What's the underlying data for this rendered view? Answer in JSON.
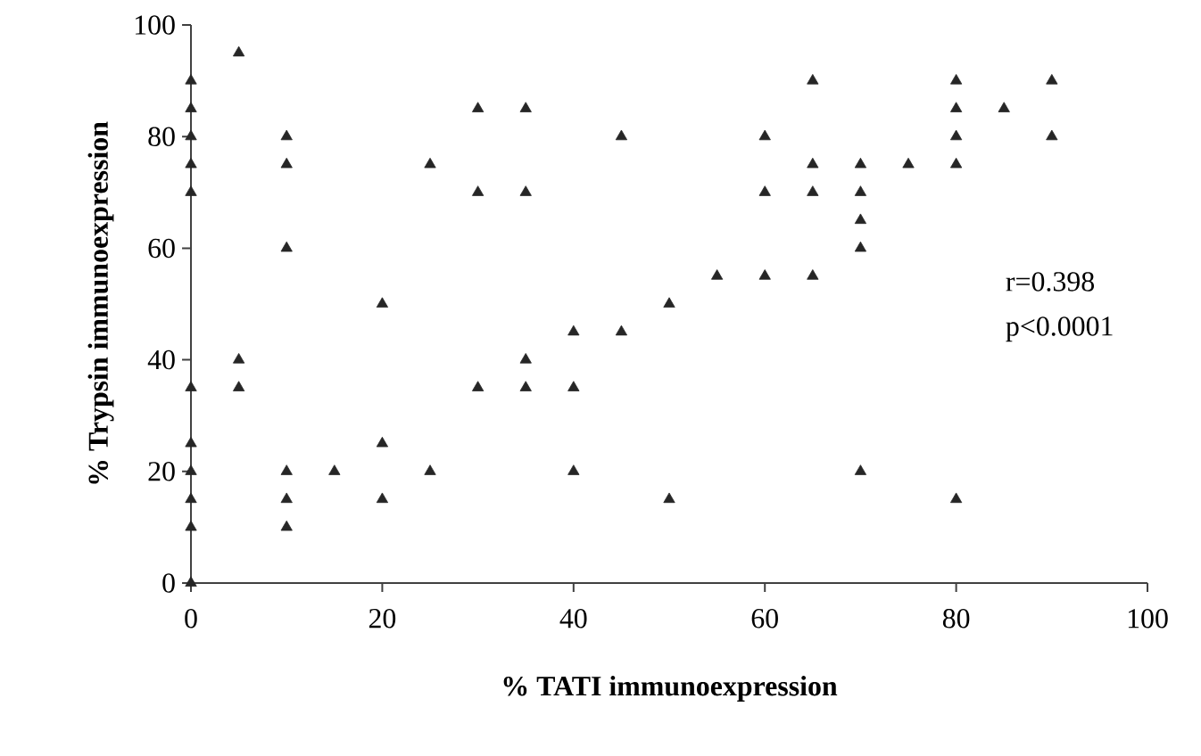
{
  "chart_data": {
    "type": "scatter",
    "xlabel": "% TATI immunoexpression",
    "ylabel": "% Trypsin immunoexpression",
    "annotations": [
      "r=0.398",
      "p<0.0001"
    ],
    "x": [
      0,
      0,
      0,
      0,
      0,
      0,
      0,
      0,
      0,
      0,
      0,
      5,
      5,
      5,
      10,
      10,
      10,
      10,
      10,
      10,
      15,
      20,
      20,
      20,
      25,
      25,
      30,
      30,
      30,
      35,
      35,
      35,
      35,
      40,
      40,
      40,
      45,
      45,
      50,
      50,
      55,
      60,
      60,
      60,
      65,
      65,
      65,
      65,
      70,
      70,
      70,
      70,
      70,
      75,
      80,
      80,
      80,
      80,
      80,
      85,
      90,
      90
    ],
    "values": [
      90,
      85,
      80,
      75,
      70,
      35,
      25,
      20,
      15,
      10,
      0,
      95,
      40,
      35,
      80,
      75,
      60,
      20,
      15,
      10,
      20,
      50,
      25,
      15,
      75,
      20,
      85,
      70,
      35,
      85,
      70,
      40,
      35,
      45,
      35,
      20,
      80,
      45,
      50,
      15,
      55,
      80,
      70,
      55,
      90,
      75,
      70,
      55,
      75,
      70,
      65,
      60,
      20,
      75,
      90,
      85,
      80,
      75,
      15,
      85,
      90,
      80
    ],
    "color": "#262626",
    "marker": "triangle",
    "xlim": [
      0,
      100
    ],
    "ylim": [
      0,
      100
    ],
    "xticks": [
      0,
      20,
      40,
      60,
      80,
      100
    ],
    "yticks": [
      0,
      20,
      40,
      60,
      80,
      100
    ]
  }
}
